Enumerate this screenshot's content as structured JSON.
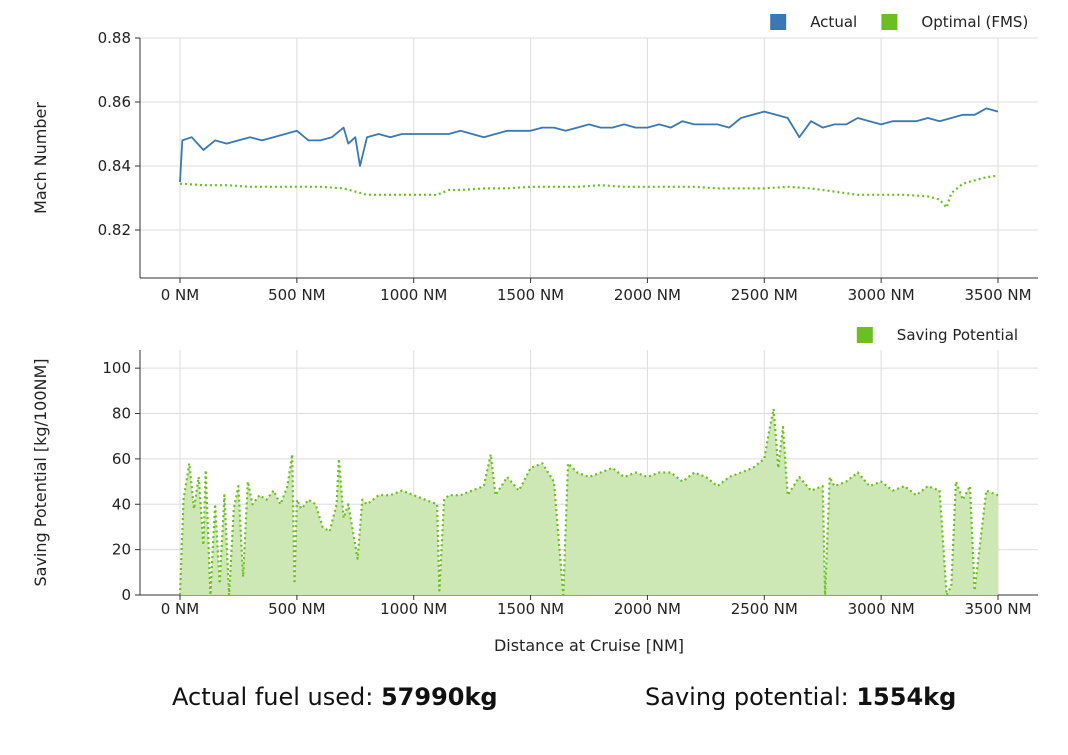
{
  "colors": {
    "actual": "#3a78b5",
    "optimal": "#6cbf1f",
    "fill": "#cde8b4",
    "grid": "#dddddd"
  },
  "summary": {
    "fuel_label": "Actual fuel used: ",
    "fuel_value": "57990kg",
    "saving_label": "Saving potential: ",
    "saving_value": "1554kg"
  },
  "chart_data": [
    {
      "type": "line",
      "ylabel": "Mach Number",
      "xlabel": "",
      "xlim": [
        0,
        3500
      ],
      "ylim": [
        0.805,
        0.88
      ],
      "x_ticks": [
        "0 NM",
        "500 NM",
        "1000 NM",
        "1500 NM",
        "2000 NM",
        "2500 NM",
        "3000 NM",
        "3500 NM"
      ],
      "x_tick_values": [
        0,
        500,
        1000,
        1500,
        2000,
        2500,
        3000,
        3500
      ],
      "y_ticks": [
        "0.82",
        "0.84",
        "0.86",
        "0.88"
      ],
      "y_tick_values": [
        0.82,
        0.84,
        0.86,
        0.88
      ],
      "grid": true,
      "legend_position": "top-right",
      "series": [
        {
          "name": "Actual",
          "style": "solid",
          "x": [
            0,
            10,
            50,
            100,
            150,
            200,
            250,
            300,
            350,
            400,
            450,
            500,
            550,
            600,
            650,
            700,
            720,
            750,
            770,
            800,
            850,
            900,
            950,
            1000,
            1050,
            1100,
            1150,
            1200,
            1250,
            1300,
            1350,
            1400,
            1450,
            1500,
            1550,
            1600,
            1650,
            1700,
            1750,
            1800,
            1850,
            1900,
            1950,
            2000,
            2050,
            2100,
            2150,
            2200,
            2250,
            2300,
            2350,
            2400,
            2450,
            2500,
            2550,
            2600,
            2650,
            2700,
            2750,
            2800,
            2850,
            2900,
            2950,
            3000,
            3050,
            3100,
            3150,
            3200,
            3250,
            3300,
            3350,
            3400,
            3450,
            3500
          ],
          "y": [
            0.835,
            0.848,
            0.849,
            0.845,
            0.848,
            0.847,
            0.848,
            0.849,
            0.848,
            0.849,
            0.85,
            0.851,
            0.848,
            0.848,
            0.849,
            0.852,
            0.847,
            0.849,
            0.84,
            0.849,
            0.85,
            0.849,
            0.85,
            0.85,
            0.85,
            0.85,
            0.85,
            0.851,
            0.85,
            0.849,
            0.85,
            0.851,
            0.851,
            0.851,
            0.852,
            0.852,
            0.851,
            0.852,
            0.853,
            0.852,
            0.852,
            0.853,
            0.852,
            0.852,
            0.853,
            0.852,
            0.854,
            0.853,
            0.853,
            0.853,
            0.852,
            0.855,
            0.856,
            0.857,
            0.856,
            0.855,
            0.849,
            0.854,
            0.852,
            0.853,
            0.853,
            0.855,
            0.854,
            0.853,
            0.854,
            0.854,
            0.854,
            0.855,
            0.854,
            0.855,
            0.856,
            0.856,
            0.858,
            0.857
          ]
        },
        {
          "name": "Optimal (FMS)",
          "style": "dotted",
          "x": [
            0,
            100,
            200,
            300,
            400,
            500,
            600,
            700,
            750,
            800,
            900,
            1000,
            1100,
            1150,
            1200,
            1300,
            1400,
            1500,
            1600,
            1700,
            1800,
            1900,
            2000,
            2100,
            2200,
            2300,
            2400,
            2500,
            2600,
            2700,
            2800,
            2900,
            3000,
            3100,
            3200,
            3250,
            3280,
            3300,
            3350,
            3400,
            3450,
            3500
          ],
          "y": [
            0.8345,
            0.834,
            0.834,
            0.8335,
            0.8335,
            0.8335,
            0.8335,
            0.833,
            0.832,
            0.831,
            0.831,
            0.831,
            0.831,
            0.8325,
            0.8325,
            0.833,
            0.833,
            0.8335,
            0.8335,
            0.8335,
            0.834,
            0.8335,
            0.8335,
            0.8335,
            0.8335,
            0.833,
            0.833,
            0.833,
            0.8335,
            0.833,
            0.832,
            0.831,
            0.831,
            0.831,
            0.8305,
            0.8295,
            0.827,
            0.8315,
            0.8345,
            0.8355,
            0.8365,
            0.837
          ]
        }
      ]
    },
    {
      "type": "area",
      "ylabel": "Saving Potential [kg/100NM]",
      "xlabel": "Distance at Cruise [NM]",
      "xlim": [
        0,
        3500
      ],
      "ylim": [
        0,
        108
      ],
      "x_ticks": [
        "0 NM",
        "500 NM",
        "1000 NM",
        "1500 NM",
        "2000 NM",
        "2500 NM",
        "3000 NM",
        "3500 NM"
      ],
      "x_tick_values": [
        0,
        500,
        1000,
        1500,
        2000,
        2500,
        3000,
        3500
      ],
      "y_ticks": [
        "0",
        "20",
        "40",
        "60",
        "80",
        "100"
      ],
      "y_tick_values": [
        0,
        20,
        40,
        60,
        80,
        100
      ],
      "grid": true,
      "legend_position": "top-right",
      "series": [
        {
          "name": "Saving Potential",
          "style": "dotted",
          "x": [
            0,
            15,
            40,
            60,
            80,
            100,
            110,
            130,
            150,
            170,
            190,
            210,
            230,
            250,
            270,
            290,
            310,
            340,
            370,
            400,
            430,
            460,
            480,
            490,
            500,
            520,
            550,
            580,
            610,
            640,
            670,
            680,
            700,
            720,
            760,
            780,
            800,
            850,
            900,
            950,
            1000,
            1050,
            1100,
            1110,
            1130,
            1150,
            1200,
            1250,
            1300,
            1330,
            1350,
            1400,
            1450,
            1500,
            1550,
            1600,
            1640,
            1660,
            1700,
            1750,
            1800,
            1850,
            1900,
            1950,
            2000,
            2050,
            2100,
            2150,
            2200,
            2250,
            2300,
            2350,
            2400,
            2450,
            2500,
            2520,
            2540,
            2560,
            2580,
            2600,
            2650,
            2700,
            2750,
            2760,
            2780,
            2800,
            2850,
            2900,
            2950,
            3000,
            3050,
            3100,
            3150,
            3200,
            3250,
            3280,
            3300,
            3320,
            3350,
            3380,
            3400,
            3450,
            3500
          ],
          "y": [
            0,
            42,
            58,
            38,
            52,
            22,
            55,
            0,
            40,
            5,
            44,
            0,
            38,
            48,
            8,
            50,
            40,
            44,
            42,
            46,
            40,
            48,
            62,
            5,
            42,
            38,
            42,
            40,
            30,
            28,
            40,
            60,
            34,
            40,
            16,
            42,
            40,
            44,
            44,
            46,
            44,
            42,
            40,
            2,
            42,
            44,
            44,
            46,
            48,
            62,
            44,
            52,
            46,
            56,
            58,
            50,
            0,
            58,
            54,
            52,
            54,
            56,
            52,
            54,
            52,
            54,
            54,
            50,
            54,
            52,
            48,
            52,
            54,
            56,
            60,
            72,
            82,
            56,
            74,
            44,
            52,
            46,
            48,
            0,
            52,
            48,
            50,
            54,
            48,
            50,
            46,
            48,
            44,
            48,
            46,
            0,
            4,
            50,
            42,
            48,
            2,
            46,
            44
          ]
        }
      ]
    }
  ]
}
